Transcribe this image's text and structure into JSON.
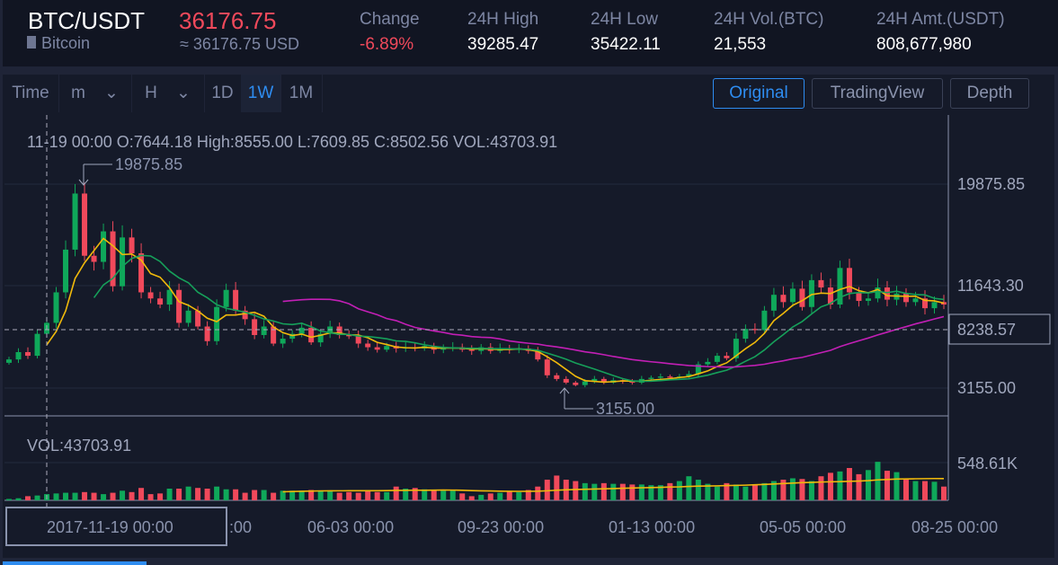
{
  "header": {
    "pair": "BTC/USDT",
    "coin": "Bitcoin",
    "price": "36176.75",
    "price_usd": "≈ 36176.75 USD",
    "stats": [
      {
        "label": "Change",
        "value": "-6.89%"
      },
      {
        "label": "24H High",
        "value": "39285.47"
      },
      {
        "label": "24H Low",
        "value": "35422.11"
      },
      {
        "label": "24H Vol.(BTC)",
        "value": "21,553"
      },
      {
        "label": "24H Amt.(USDT)",
        "value": "808,677,980"
      }
    ]
  },
  "toolbar": {
    "time": "Time",
    "minute": "m",
    "hour": "H",
    "day": "1D",
    "week": "1W",
    "month": "1M",
    "active": "1W",
    "views": [
      "Original",
      "TradingView",
      "Depth"
    ],
    "active_view": "Original"
  },
  "chart": {
    "info": "11-19 00:00   O:7644.18  High:8555.00   L:7609.85   C:8502.56   VOL:43703.91",
    "max_label": "19875.85",
    "min_label": "3155.00",
    "price_ticks": [
      "19875.85",
      "11643.30",
      "3155.00"
    ],
    "crosshair_price": "8238.57",
    "vol_label": "VOL:43703.91",
    "vol_tick": "548.61K",
    "x_ticks": [
      ":00",
      "06-03 00:00",
      "09-23 00:00",
      "01-13 00:00",
      "05-05 00:00",
      "08-25 00:00"
    ],
    "crosshair_time": "2017-11-19 00:00",
    "colors": {
      "up": "#0fa85a",
      "down": "#f0495b",
      "ma_short": "#f0b90b",
      "ma_mid": "#16a05a",
      "ma_long": "#c21fb5",
      "accent": "#2e8cf0"
    }
  },
  "chart_data": {
    "type": "candlestick",
    "unit": "thousand USDT",
    "close": [
      5.5,
      6.1,
      5.8,
      7.6,
      8.5,
      11.0,
      14.5,
      19.1,
      14.0,
      13.5,
      16.0,
      11.5,
      15.5,
      14.2,
      11.0,
      10.5,
      10.0,
      11.2,
      8.5,
      9.5,
      8.2,
      7.0,
      9.8,
      11.2,
      9.5,
      8.8,
      7.5,
      8.2,
      6.8,
      7.2,
      7.6,
      8.1,
      6.9,
      7.6,
      8.2,
      7.5,
      7.4,
      6.8,
      6.5,
      6.3,
      6.6,
      6.4,
      6.5,
      6.4,
      6.6,
      6.3,
      6.4,
      6.5,
      6.3,
      6.2,
      6.5,
      6.2,
      6.4,
      6.3,
      6.4,
      6.2,
      5.5,
      4.2,
      3.9,
      3.6,
      3.4,
      3.7,
      3.9,
      3.6,
      3.8,
      3.7,
      3.6,
      3.9,
      4.0,
      4.1,
      4.0,
      4.1,
      4.3,
      5.1,
      5.3,
      5.8,
      5.6,
      7.2,
      8.0,
      7.9,
      9.5,
      10.8,
      10.2,
      11.3,
      9.8,
      12.0,
      11.4,
      10.0,
      13.0,
      11.0,
      10.3,
      10.5,
      11.4,
      10.4,
      10.9,
      10.2,
      10.5,
      9.7,
      10.2,
      10.0
    ],
    "volume_k": [
      20,
      30,
      60,
      70,
      90,
      100,
      110,
      110,
      120,
      110,
      90,
      110,
      140,
      120,
      180,
      90,
      100,
      170,
      170,
      200,
      180,
      170,
      200,
      160,
      160,
      110,
      150,
      150,
      110,
      140,
      140,
      140,
      150,
      140,
      130,
      110,
      120,
      110,
      140,
      120,
      120,
      200,
      170,
      180,
      160,
      140,
      140,
      150,
      100,
      60,
      80,
      100,
      110,
      130,
      120,
      150,
      200,
      300,
      360,
      300,
      280,
      250,
      240,
      250,
      240,
      240,
      230,
      230,
      220,
      220,
      250,
      280,
      350,
      300,
      240,
      200,
      250,
      230,
      200,
      230,
      250,
      280,
      300,
      320,
      310,
      280,
      350,
      400,
      420,
      470,
      380,
      440,
      560,
      430,
      410,
      320,
      280,
      280,
      270,
      200
    ]
  }
}
